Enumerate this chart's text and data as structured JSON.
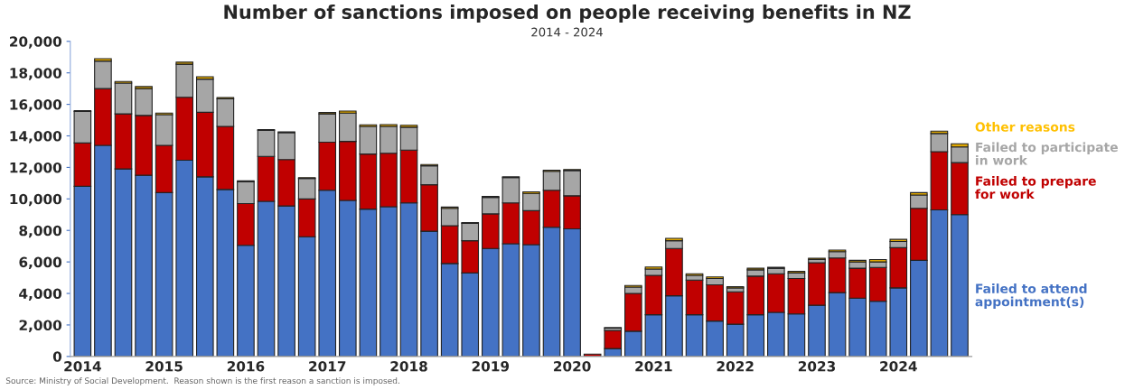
{
  "chart_data": {
    "type": "bar",
    "stacked": true,
    "title": "Number of sanctions imposed on people receiving benefits in NZ",
    "subtitle": "2014 - 2024",
    "categories": [
      "2014",
      null,
      null,
      null,
      "2015",
      null,
      null,
      null,
      "2016",
      null,
      null,
      null,
      "2017",
      null,
      null,
      null,
      "2018",
      null,
      null,
      null,
      "2019",
      null,
      null,
      null,
      "2020",
      null,
      null,
      null,
      "2021",
      null,
      null,
      null,
      "2022",
      null,
      null,
      null,
      "2023",
      null,
      null,
      null,
      "2024",
      null,
      null,
      null
    ],
    "series": [
      {
        "name": "Failed to attend\nappointment(s)",
        "color": "#4472c4",
        "values": [
          10800,
          13400,
          11900,
          11500,
          10400,
          12450,
          11400,
          10600,
          7050,
          9850,
          9550,
          7600,
          10550,
          9900,
          9350,
          9500,
          9750,
          7950,
          5900,
          5300,
          6850,
          7150,
          7100,
          8200,
          8100,
          0,
          500,
          1600,
          2650,
          3850,
          2650,
          2250,
          2050,
          2650,
          2800,
          2700,
          3250,
          4050,
          3700,
          3500,
          4350,
          6100,
          9300,
          9000
        ]
      },
      {
        "name": "Failed to prepare\nfor work",
        "color": "#c00000",
        "values": [
          2750,
          3600,
          3500,
          3800,
          3000,
          4000,
          4100,
          4000,
          2650,
          2850,
          2950,
          2400,
          3050,
          3750,
          3500,
          3400,
          3350,
          2950,
          2400,
          2050,
          2200,
          2600,
          2150,
          2350,
          2100,
          150,
          1150,
          2400,
          2500,
          3000,
          2200,
          2300,
          2050,
          2450,
          2450,
          2250,
          2700,
          2200,
          1900,
          2150,
          2550,
          3300,
          3700,
          3300
        ]
      },
      {
        "name": "Failed to participate\nin work",
        "color": "#a6a6a6",
        "values": [
          2000,
          1750,
          1950,
          1700,
          1950,
          2100,
          2100,
          1750,
          1400,
          1650,
          1700,
          1300,
          1800,
          1800,
          1750,
          1700,
          1450,
          1200,
          1100,
          1100,
          1050,
          1600,
          1100,
          1200,
          1600,
          0,
          150,
          400,
          400,
          500,
          300,
          400,
          250,
          400,
          350,
          350,
          200,
          400,
          400,
          350,
          400,
          850,
          1150,
          1000
        ]
      },
      {
        "name": "Other reasons",
        "color": "#e0a800",
        "values": [
          50,
          150,
          100,
          130,
          100,
          130,
          150,
          80,
          50,
          50,
          50,
          50,
          80,
          130,
          100,
          120,
          120,
          80,
          80,
          50,
          60,
          50,
          100,
          70,
          70,
          0,
          30,
          100,
          130,
          150,
          100,
          100,
          80,
          100,
          60,
          100,
          80,
          100,
          100,
          150,
          130,
          150,
          150,
          200
        ]
      }
    ],
    "ylim": [
      0,
      20000
    ],
    "yticks": [
      0,
      {
        "value": 2000,
        "label": "2,000"
      },
      {
        "value": 4000,
        "label": "4,000"
      },
      {
        "value": 6000,
        "label": "6,000"
      },
      {
        "value": 8000,
        "label": "8,000"
      },
      {
        "value": 10000,
        "label": "10,000"
      },
      {
        "value": 12000,
        "label": "12,000"
      },
      {
        "value": 14000,
        "label": "14,000"
      },
      {
        "value": 16000,
        "label": "16,000"
      },
      {
        "value": 18000,
        "label": "18,000"
      },
      {
        "value": 20000,
        "label": "20,000"
      }
    ],
    "grid": false,
    "legend": false,
    "annotations": [
      "Source: Ministry of Social Development.  Reason shown is the first reason a sanction is imposed."
    ]
  }
}
